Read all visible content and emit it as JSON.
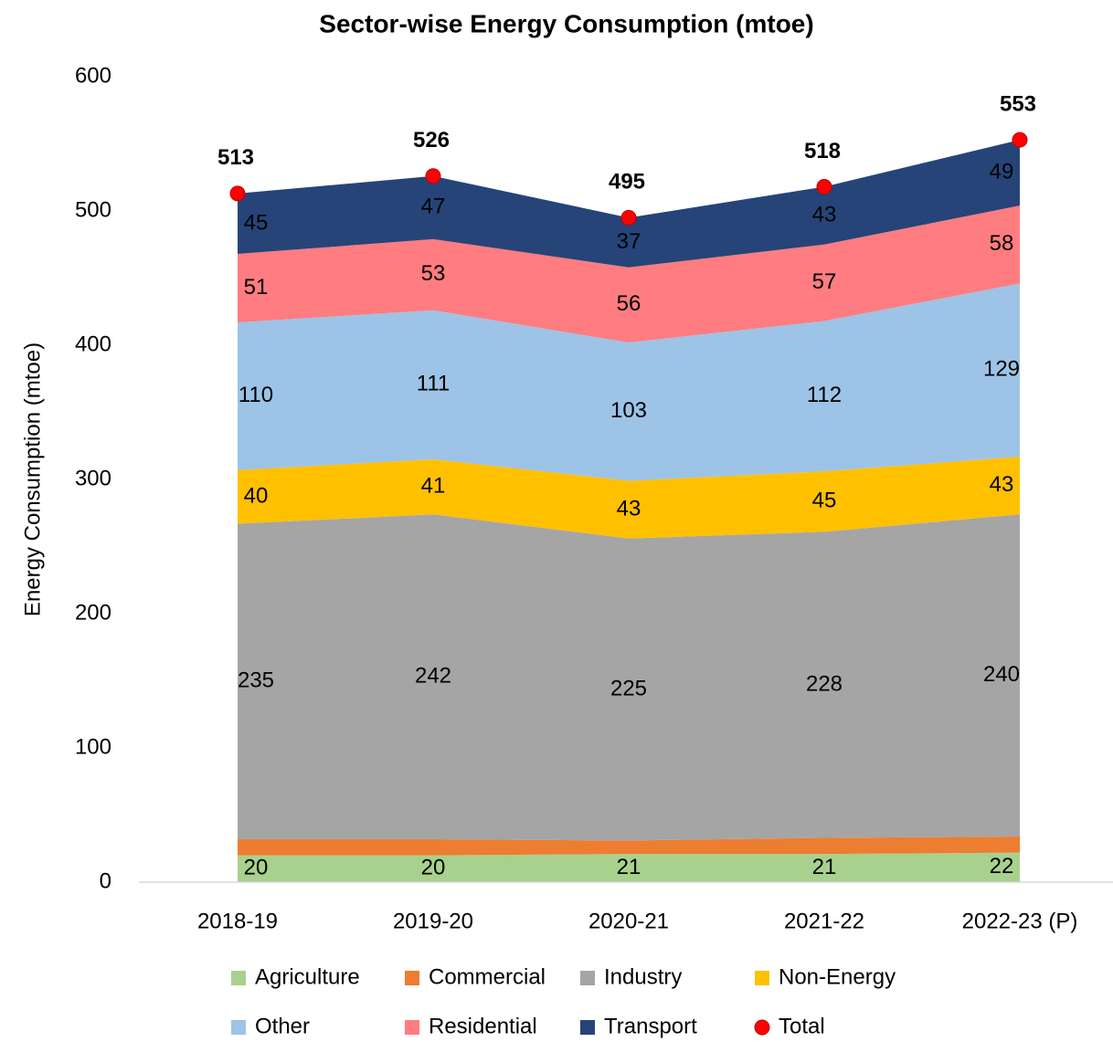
{
  "chart_data": {
    "type": "stacked-area",
    "title": "Sector-wise Energy Consumption (mtoe)",
    "y_label": "Energy Consumption (mtoe)",
    "categories": [
      "2018-19",
      "2019-20",
      "2020-21",
      "2021-22",
      "2022-23 (P)"
    ],
    "ylim": [
      0,
      600
    ],
    "yticks": [
      0,
      100,
      200,
      300,
      400,
      500,
      600
    ],
    "grid": false,
    "series": [
      {
        "name": "Agriculture",
        "color": "#a9d18e",
        "label_color": "#000000",
        "show_labels": true,
        "values": [
          20,
          20,
          21,
          21,
          22
        ]
      },
      {
        "name": "Commercial",
        "color": "#ed7d31",
        "show_labels": false,
        "values": [
          12,
          12,
          10,
          12,
          12
        ]
      },
      {
        "name": "Industry",
        "color": "#a5a5a5",
        "label_color": "#000000",
        "show_labels": true,
        "values": [
          235,
          242,
          225,
          228,
          240
        ]
      },
      {
        "name": "Non-Energy",
        "color": "#ffc000",
        "label_color": "#000000",
        "show_labels": true,
        "values": [
          40,
          41,
          43,
          45,
          43
        ]
      },
      {
        "name": "Other",
        "color": "#9dc3e6",
        "label_color": "#000000",
        "show_labels": true,
        "values": [
          110,
          111,
          103,
          112,
          129
        ]
      },
      {
        "name": "Residential",
        "color": "#ff7c80",
        "label_color": "#000000",
        "show_labels": true,
        "values": [
          51,
          53,
          56,
          57,
          58
        ]
      },
      {
        "name": "Transport",
        "color": "#264478",
        "label_color": "#ffffff",
        "show_labels": true,
        "values": [
          45,
          47,
          37,
          43,
          49
        ]
      }
    ],
    "total": {
      "name": "Total",
      "color": "#ff0000",
      "values": [
        513,
        526,
        495,
        518,
        553
      ]
    }
  }
}
